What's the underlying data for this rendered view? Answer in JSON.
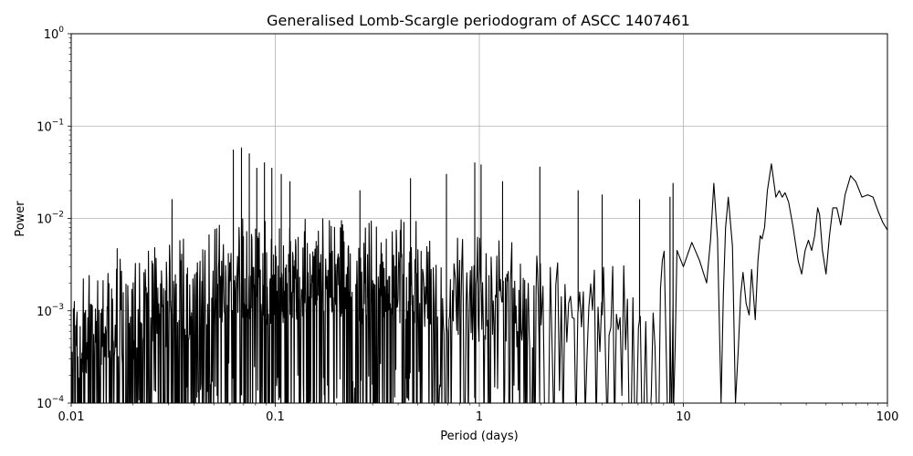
{
  "chart_data": {
    "type": "line",
    "title": "Generalised Lomb-Scargle periodogram of ASCC 1407461",
    "xlabel": "Period (days)",
    "ylabel": "Power",
    "xscale": "log",
    "yscale": "log",
    "xlim": [
      0.01,
      100
    ],
    "ylim": [
      0.0001,
      1
    ],
    "grid": true,
    "x_ticks": [
      {
        "value": 0.01,
        "label": "0.01"
      },
      {
        "value": 0.1,
        "label": "0.1"
      },
      {
        "value": 1,
        "label": "1"
      },
      {
        "value": 10,
        "label": "10"
      },
      {
        "value": 100,
        "label": "100"
      }
    ],
    "y_ticks": [
      {
        "value": 0.0001,
        "base": "10",
        "exp": "−4"
      },
      {
        "value": 0.001,
        "base": "10",
        "exp": "−3"
      },
      {
        "value": 0.01,
        "base": "10",
        "exp": "−2"
      },
      {
        "value": 0.1,
        "base": "10",
        "exp": "−1"
      },
      {
        "value": 1,
        "base": "10",
        "exp": "0"
      }
    ],
    "line_color": "#000000",
    "grid_color": "#b0b0b0",
    "peaks": [
      {
        "x": 0.0623,
        "y": 0.055
      },
      {
        "x": 0.0683,
        "y": 0.058
      },
      {
        "x": 0.0746,
        "y": 0.05
      },
      {
        "x": 0.0812,
        "y": 0.035
      },
      {
        "x": 0.0885,
        "y": 0.04
      },
      {
        "x": 0.0962,
        "y": 0.035
      },
      {
        "x": 0.107,
        "y": 0.03
      },
      {
        "x": 0.118,
        "y": 0.025
      },
      {
        "x": 0.0312,
        "y": 0.016
      },
      {
        "x": 0.0168,
        "y": 0.0047
      },
      {
        "x": 0.26,
        "y": 0.02
      },
      {
        "x": 0.46,
        "y": 0.027
      },
      {
        "x": 0.69,
        "y": 0.03
      },
      {
        "x": 0.95,
        "y": 0.04
      },
      {
        "x": 1.02,
        "y": 0.038
      },
      {
        "x": 1.3,
        "y": 0.025
      },
      {
        "x": 1.98,
        "y": 0.036
      },
      {
        "x": 3.05,
        "y": 0.02
      },
      {
        "x": 4.0,
        "y": 0.018
      },
      {
        "x": 6.1,
        "y": 0.016
      },
      {
        "x": 8.6,
        "y": 0.017
      },
      {
        "x": 8.9,
        "y": 0.024
      },
      {
        "x": 14.1,
        "y": 0.024
      },
      {
        "x": 16.6,
        "y": 0.017
      },
      {
        "x": 27.0,
        "y": 0.039
      },
      {
        "x": 66.0,
        "y": 0.029
      }
    ],
    "smooth_segment": {
      "x": [
        9.3,
        10.0,
        11.0,
        12.0,
        13.0,
        13.6,
        14.1,
        14.7,
        15.3,
        15.7,
        16.1,
        16.6,
        17.4,
        18.0,
        18.6,
        19.1,
        19.6,
        20.3,
        21.0,
        21.6,
        22.5,
        23.2,
        23.8,
        24.3,
        25.0,
        25.8,
        27.0,
        28.4,
        29.5,
        30.5,
        31.5,
        32.8,
        34.5,
        36.5,
        38.0,
        39.5,
        41.0,
        42.5,
        44.0,
        45.5,
        46.5,
        48.0,
        50.0,
        52.0,
        54.0,
        56.5,
        59.0,
        62.0,
        66.0,
        70.0,
        75.0,
        80.0,
        85.0,
        90.0,
        95.0,
        100.0
      ],
      "y": [
        0.0045,
        0.003,
        0.0055,
        0.0035,
        0.002,
        0.006,
        0.024,
        0.006,
        0.0001,
        0.0015,
        0.008,
        0.017,
        0.005,
        0.0001,
        0.0004,
        0.0015,
        0.0026,
        0.0012,
        0.0009,
        0.0028,
        0.0008,
        0.0035,
        0.0065,
        0.006,
        0.008,
        0.02,
        0.039,
        0.017,
        0.02,
        0.017,
        0.019,
        0.015,
        0.008,
        0.0035,
        0.0025,
        0.0045,
        0.0058,
        0.0045,
        0.0065,
        0.013,
        0.011,
        0.0045,
        0.0025,
        0.0065,
        0.013,
        0.013,
        0.0085,
        0.018,
        0.029,
        0.025,
        0.017,
        0.018,
        0.017,
        0.012,
        0.009,
        0.0075
      ]
    }
  }
}
